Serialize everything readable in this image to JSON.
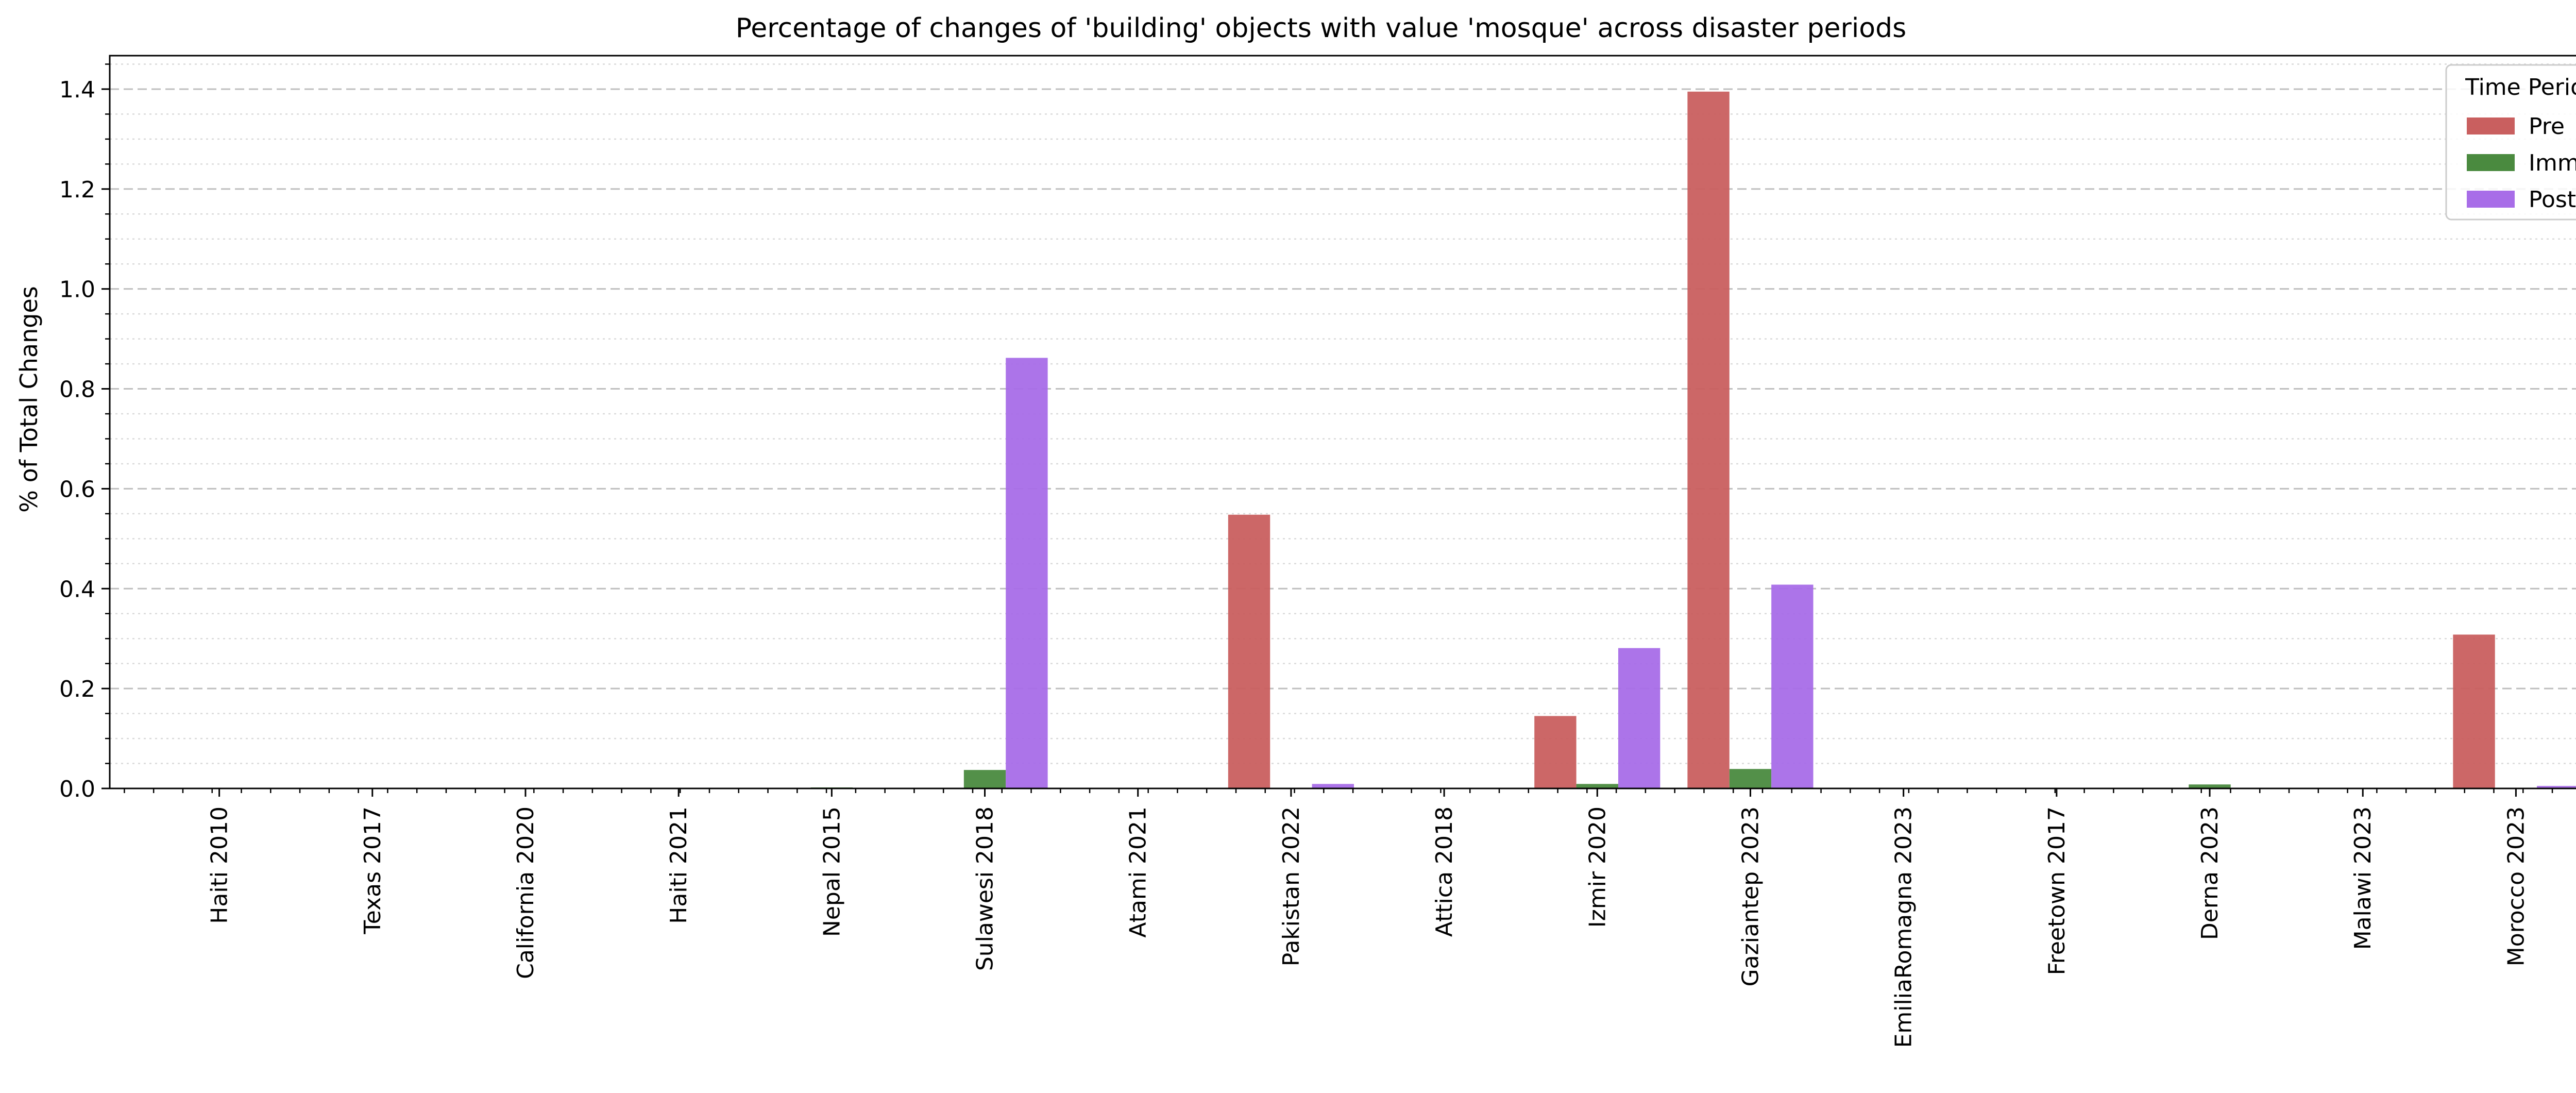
{
  "chart_data": {
    "type": "bar",
    "title": "Percentage of changes of 'building' objects with value 'mosque' across disaster periods",
    "xlabel": "",
    "ylabel": "% of Total Changes",
    "ylim": [
      0,
      1.467
    ],
    "yticks": [
      "0.0",
      "0.2",
      "0.4",
      "0.6",
      "0.8",
      "1.0",
      "1.2",
      "1.4"
    ],
    "grid": true,
    "legend_title": "Time Period",
    "legend_position": "top-right",
    "categories": [
      "Haiti 2010",
      "Texas 2017",
      "California 2020",
      "Haiti 2021",
      "Nepal 2015",
      "Sulawesi 2018",
      "Atami 2021",
      "Pakistan 2022",
      "Attica 2018",
      "Izmir 2020",
      "Gaziantep 2023",
      "EmiliaRomagna 2023",
      "Freetown 2017",
      "Derna 2023",
      "Malawi 2023",
      "Morocco 2023"
    ],
    "series": [
      {
        "name": "Pre",
        "color": "#c95f5f",
        "values": [
          0,
          0,
          0,
          0,
          0,
          0,
          0,
          0.548,
          0,
          0.145,
          1.395,
          0,
          0,
          0,
          0,
          0.308
        ]
      },
      {
        "name": "Imm",
        "color": "#4a8a3f",
        "values": [
          0,
          0,
          0,
          0,
          0.002,
          0.037,
          0,
          0,
          0,
          0.009,
          0.039,
          0,
          0,
          0.008,
          0,
          0
        ]
      },
      {
        "name": "Post",
        "color": "#a86de8",
        "values": [
          0,
          0,
          0,
          0,
          0,
          0.862,
          0,
          0.009,
          0,
          0.281,
          0.408,
          0,
          0,
          0,
          0,
          0.005
        ]
      }
    ]
  }
}
